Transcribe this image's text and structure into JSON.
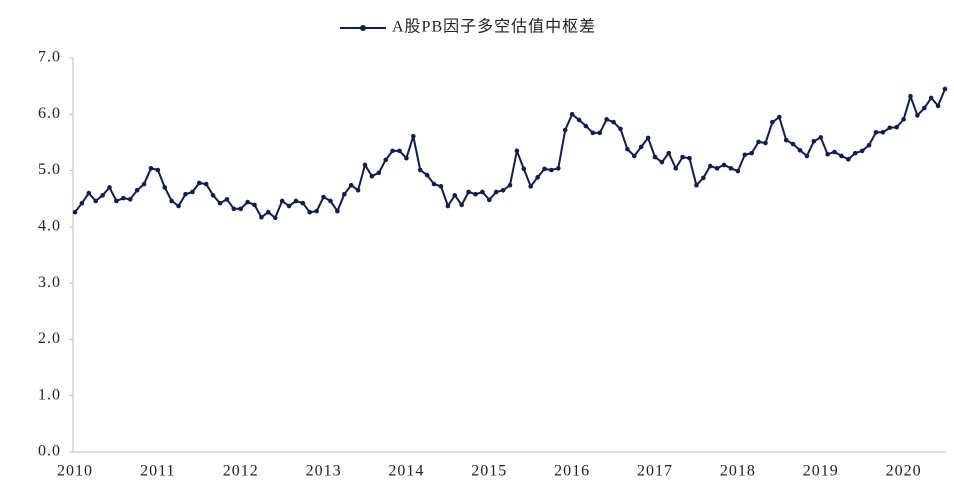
{
  "chart_data": {
    "type": "line",
    "series": [
      {
        "name": "A股PB因子多空估值中枢差",
        "color": "#0d1f4f",
        "values": [
          4.26,
          4.42,
          4.6,
          4.46,
          4.56,
          4.7,
          4.46,
          4.51,
          4.49,
          4.65,
          4.76,
          5.04,
          5.01,
          4.7,
          4.46,
          4.37,
          4.58,
          4.62,
          4.78,
          4.76,
          4.56,
          4.42,
          4.49,
          4.32,
          4.32,
          4.44,
          4.39,
          4.17,
          4.26,
          4.16,
          4.46,
          4.37,
          4.46,
          4.42,
          4.26,
          4.28,
          4.53,
          4.46,
          4.28,
          4.58,
          4.74,
          4.65,
          5.1,
          4.9,
          4.96,
          5.19,
          5.35,
          5.35,
          5.22,
          5.61,
          5.01,
          4.92,
          4.76,
          4.72,
          4.37,
          4.56,
          4.39,
          4.62,
          4.58,
          4.62,
          4.48,
          4.62,
          4.65,
          4.74,
          5.35,
          5.03,
          4.72,
          4.88,
          5.03,
          5.01,
          5.04,
          5.72,
          6.0,
          5.9,
          5.79,
          5.67,
          5.67,
          5.91,
          5.86,
          5.74,
          5.38,
          5.26,
          5.42,
          5.58,
          5.24,
          5.15,
          5.31,
          5.04,
          5.24,
          5.22,
          4.74,
          4.87,
          5.08,
          5.04,
          5.1,
          5.04,
          4.99,
          5.28,
          5.31,
          5.51,
          5.49,
          5.86,
          5.95,
          5.54,
          5.47,
          5.36,
          5.26,
          5.52,
          5.59,
          5.29,
          5.33,
          5.26,
          5.2,
          5.31,
          5.35,
          5.45,
          5.68,
          5.68,
          5.76,
          5.77,
          5.91,
          6.32,
          5.98,
          6.11,
          6.29,
          6.15,
          6.45
        ]
      }
    ],
    "categories": [
      "2010",
      null,
      null,
      null,
      null,
      null,
      null,
      null,
      null,
      null,
      null,
      null,
      "2011",
      null,
      null,
      null,
      null,
      null,
      null,
      null,
      null,
      null,
      null,
      null,
      "2012",
      null,
      null,
      null,
      null,
      null,
      null,
      null,
      null,
      null,
      null,
      null,
      "2013",
      null,
      null,
      null,
      null,
      null,
      null,
      null,
      null,
      null,
      null,
      null,
      "2014",
      null,
      null,
      null,
      null,
      null,
      null,
      null,
      null,
      null,
      null,
      null,
      "2015",
      null,
      null,
      null,
      null,
      null,
      null,
      null,
      null,
      null,
      null,
      null,
      "2016",
      null,
      null,
      null,
      null,
      null,
      null,
      null,
      null,
      null,
      null,
      null,
      "2017",
      null,
      null,
      null,
      null,
      null,
      null,
      null,
      null,
      null,
      null,
      null,
      "2018",
      null,
      null,
      null,
      null,
      null,
      null,
      null,
      null,
      null,
      null,
      null,
      "2019",
      null,
      null,
      null,
      null,
      null,
      null,
      null,
      null,
      null,
      null,
      null,
      "2020",
      null,
      null,
      null,
      null,
      null,
      null
    ],
    "ylim": [
      0,
      7
    ],
    "yticks": [
      {
        "value": 0,
        "label": "0.0"
      },
      {
        "value": 1,
        "label": "1.0"
      },
      {
        "value": 2,
        "label": "2.0"
      },
      {
        "value": 3,
        "label": "3.0"
      },
      {
        "value": 4,
        "label": "4.0"
      },
      {
        "value": 5,
        "label": "5.0"
      },
      {
        "value": 6,
        "label": "6.0"
      },
      {
        "value": 7,
        "label": "7.0"
      }
    ],
    "legend": "top"
  }
}
